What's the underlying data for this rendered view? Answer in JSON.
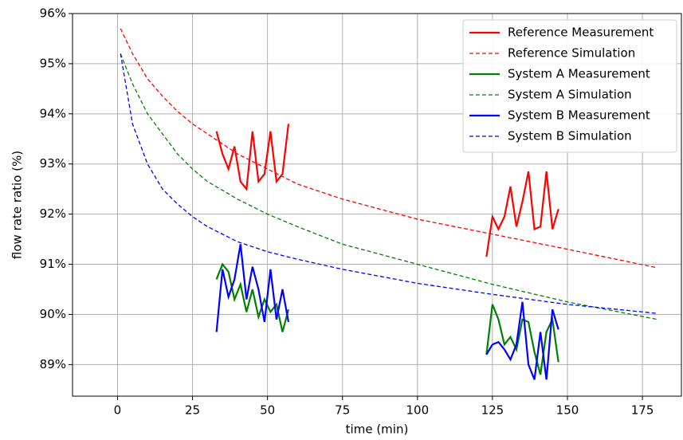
{
  "chart_data": {
    "type": "line",
    "xlabel": "time (min)",
    "ylabel": "flow rate ratio (%)",
    "xlim": [
      -15,
      188
    ],
    "xticks": [
      0,
      25,
      50,
      75,
      100,
      125,
      150,
      175
    ],
    "ylim": [
      88.37,
      96
    ],
    "yticks": [
      {
        "value": 89,
        "label": "89%"
      },
      {
        "value": 90,
        "label": "90%"
      },
      {
        "value": 91,
        "label": "91%"
      },
      {
        "value": 92,
        "label": "92%"
      },
      {
        "value": 93,
        "label": "93%"
      },
      {
        "value": 94,
        "label": "94%"
      },
      {
        "value": 95,
        "label": "95%"
      },
      {
        "value": 96,
        "label": "96%"
      }
    ],
    "grid": true,
    "legend": "upper right",
    "series": [
      {
        "name": "Reference Measurement",
        "color": "#ff0000",
        "linestyle": "solid",
        "x": [
          33,
          35,
          37,
          39,
          41,
          43,
          45,
          47,
          49,
          51,
          53,
          55,
          57,
          null,
          123,
          125,
          127,
          129,
          131,
          133,
          135,
          137,
          139,
          141,
          143,
          145,
          147
        ],
        "values": [
          93.65,
          93.2,
          92.9,
          93.35,
          92.65,
          92.5,
          93.65,
          92.65,
          92.8,
          93.65,
          92.65,
          92.8,
          93.8,
          null,
          91.15,
          91.95,
          91.7,
          91.95,
          92.55,
          91.75,
          92.25,
          92.85,
          91.7,
          91.75,
          92.85,
          91.7,
          92.1
        ]
      },
      {
        "name": "Reference Simulation",
        "color": "#ff0000",
        "linestyle": "dashed",
        "x": [
          1,
          5,
          10,
          15,
          20,
          25,
          30,
          40,
          50,
          60,
          75,
          100,
          125,
          150,
          180
        ],
        "values": [
          95.7,
          95.2,
          94.7,
          94.35,
          94.05,
          93.8,
          93.6,
          93.2,
          92.9,
          92.6,
          92.3,
          91.9,
          91.6,
          91.3,
          90.93
        ]
      },
      {
        "name": "System A Measurement",
        "color": "#008000",
        "linestyle": "solid",
        "x": [
          33,
          35,
          37,
          39,
          41,
          43,
          45,
          47,
          49,
          51,
          53,
          55,
          57,
          null,
          123,
          125,
          127,
          129,
          131,
          133,
          135,
          137,
          139,
          141,
          143,
          145,
          147
        ],
        "values": [
          90.7,
          91.0,
          90.85,
          90.3,
          90.6,
          90.05,
          90.5,
          89.95,
          90.3,
          90.05,
          90.2,
          89.65,
          90.1,
          null,
          89.2,
          90.2,
          89.9,
          89.4,
          89.55,
          89.3,
          89.9,
          89.85,
          89.25,
          88.8,
          89.65,
          89.9,
          89.05
        ]
      },
      {
        "name": "System A Simulation",
        "color": "#008000",
        "linestyle": "dashed",
        "x": [
          1,
          5,
          10,
          15,
          20,
          25,
          30,
          40,
          50,
          60,
          75,
          100,
          125,
          150,
          180
        ],
        "values": [
          95.2,
          94.6,
          94.0,
          93.6,
          93.2,
          92.9,
          92.65,
          92.3,
          92.0,
          91.75,
          91.4,
          91.0,
          90.6,
          90.25,
          89.9
        ]
      },
      {
        "name": "System B Measurement",
        "color": "#0000ff",
        "linestyle": "solid",
        "x": [
          33,
          35,
          37,
          39,
          41,
          43,
          45,
          47,
          49,
          51,
          53,
          55,
          57,
          null,
          123,
          125,
          127,
          129,
          131,
          133,
          135,
          137,
          139,
          141,
          143,
          145,
          147
        ],
        "values": [
          89.65,
          90.9,
          90.35,
          90.7,
          91.4,
          90.3,
          90.95,
          90.5,
          89.85,
          90.9,
          89.9,
          90.5,
          89.85,
          null,
          89.2,
          89.4,
          89.45,
          89.3,
          89.1,
          89.4,
          90.25,
          89.0,
          88.7,
          89.65,
          88.7,
          90.1,
          89.7
        ]
      },
      {
        "name": "System B Simulation",
        "color": "#0000ff",
        "linestyle": "dashed",
        "x": [
          1,
          5,
          10,
          15,
          20,
          25,
          30,
          40,
          50,
          60,
          75,
          100,
          125,
          150,
          180
        ],
        "values": [
          95.2,
          93.8,
          93.0,
          92.5,
          92.2,
          91.95,
          91.75,
          91.45,
          91.25,
          91.1,
          90.9,
          90.62,
          90.4,
          90.2,
          90.02
        ]
      }
    ]
  }
}
